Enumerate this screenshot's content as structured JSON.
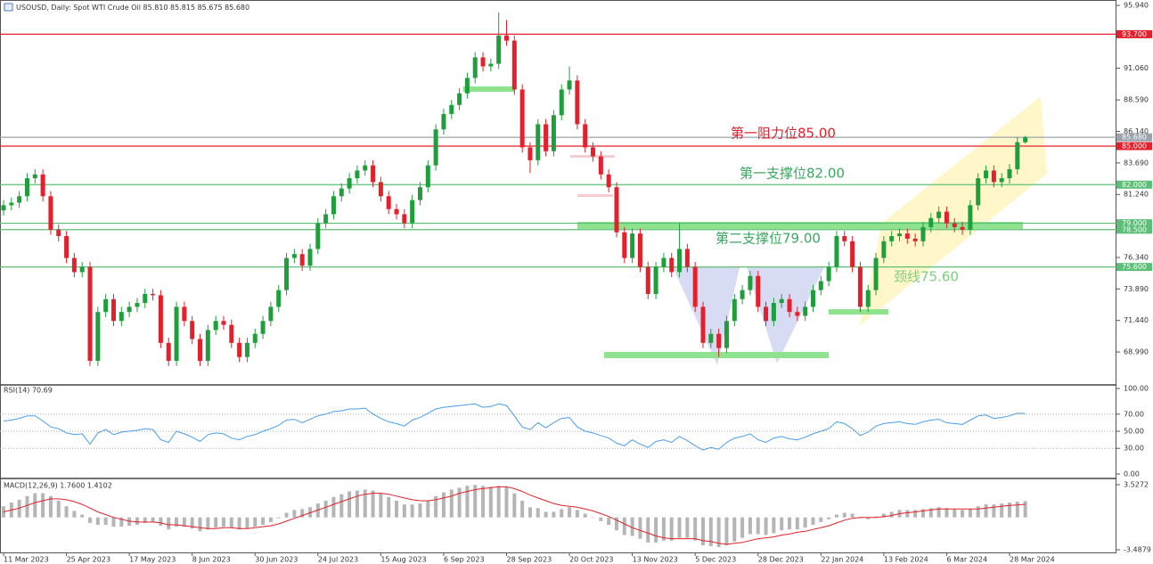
{
  "chart_data": [
    {
      "type": "candlestick",
      "title": "USOUSD, Daily:  Spot WTI Crude Oil  85.810 85.815 85.675 85.680",
      "categories": [
        "11 Mar 2023",
        null,
        null,
        null,
        null,
        null,
        null,
        null,
        "25 Apr 2023",
        null,
        null,
        null,
        null,
        null,
        null,
        null,
        "17 May 2023",
        null,
        null,
        null,
        null,
        null,
        null,
        null,
        "8 Jun 2023",
        null,
        null,
        null,
        null,
        null,
        null,
        null,
        "30 Jun 2023",
        null,
        null,
        null,
        null,
        null,
        null,
        null,
        "24 Jul 2023",
        null,
        null,
        null,
        null,
        null,
        null,
        null,
        "15 Aug 2023",
        null,
        null,
        null,
        null,
        null,
        null,
        null,
        "6 Sep 2023",
        null,
        null,
        null,
        null,
        null,
        null,
        null,
        "28 Sep 2023",
        null,
        null,
        null,
        null,
        null,
        null,
        null,
        "20 Oct 2023",
        null,
        null,
        null,
        null,
        null,
        null,
        null,
        "13 Nov 2023",
        null,
        null,
        null,
        null,
        null,
        null,
        null,
        "5 Dec 2023",
        null,
        null,
        null,
        null,
        null,
        null,
        null,
        "28 Dec 2023",
        null,
        null,
        null,
        null,
        null,
        null,
        null,
        "22 Jan 2024",
        null,
        null,
        null,
        null,
        null,
        null,
        null,
        "13 Feb 2024",
        null,
        null,
        null,
        null,
        null,
        null,
        null,
        "6 Mar 2024",
        null,
        null,
        null,
        null,
        null,
        null,
        null,
        "28 Mar 2024",
        null,
        null
      ],
      "open": [
        80.0,
        80.4,
        80.6,
        81.1,
        82.5,
        82.8,
        81.1,
        78.5,
        78.0,
        76.3,
        75.2,
        75.6,
        68.3,
        72.1,
        73.1,
        71.4,
        72.1,
        72.5,
        72.8,
        73.5,
        73.4,
        69.7,
        68.3,
        72.5,
        71.4,
        70.0,
        68.3,
        70.7,
        71.4,
        71.1,
        69.7,
        68.6,
        69.7,
        70.4,
        71.4,
        72.5,
        73.8,
        76.3,
        76.6,
        75.7,
        77.0,
        79.0,
        79.7,
        81.1,
        81.7,
        82.5,
        83.1,
        83.5,
        82.2,
        81.1,
        80.1,
        79.7,
        79.0,
        80.8,
        81.8,
        83.5,
        86.3,
        87.5,
        88.2,
        89.1,
        90.3,
        91.9,
        91.2,
        91.4,
        93.6,
        93.2,
        89.4,
        84.9,
        83.9,
        86.7,
        84.6,
        87.4,
        89.4,
        90.1,
        86.7,
        84.9,
        84.2,
        82.8,
        81.8,
        78.3,
        76.3,
        78.2,
        75.6,
        73.5,
        75.6,
        76.3,
        75.2,
        77.0,
        75.6,
        72.5,
        69.7,
        70.4,
        69.3,
        71.4,
        73.1,
        73.8,
        74.9,
        72.5,
        71.4,
        72.8,
        73.1,
        72.1,
        71.8,
        72.5,
        73.8,
        74.5,
        75.6,
        78.0,
        77.6,
        75.6,
        72.5,
        73.8,
        76.3,
        77.6,
        78.0,
        78.2,
        77.8,
        77.6,
        78.7,
        79.4,
        79.9,
        79.0,
        78.7,
        78.5,
        80.4,
        82.5,
        83.1,
        82.2,
        82.5,
        83.2,
        85.3
      ],
      "high": [
        80.8,
        81.0,
        81.5,
        82.9,
        83.2,
        83.2,
        81.5,
        78.9,
        78.4,
        76.7,
        76.0,
        76.0,
        72.5,
        73.5,
        73.5,
        72.5,
        72.9,
        73.2,
        73.9,
        73.9,
        73.8,
        70.1,
        72.9,
        72.9,
        71.8,
        70.4,
        71.1,
        71.8,
        71.8,
        71.5,
        70.1,
        70.1,
        70.8,
        71.8,
        72.9,
        74.2,
        76.7,
        77.0,
        77.0,
        77.4,
        79.4,
        80.1,
        81.5,
        82.1,
        82.9,
        83.5,
        83.9,
        83.9,
        82.6,
        81.5,
        80.5,
        80.1,
        81.2,
        82.2,
        83.9,
        86.7,
        87.9,
        88.6,
        89.5,
        90.7,
        92.3,
        92.3,
        91.8,
        95.4,
        94.8,
        93.6,
        89.8,
        85.3,
        87.1,
        87.1,
        87.8,
        89.8,
        91.2,
        90.5,
        87.1,
        85.3,
        84.6,
        83.2,
        82.2,
        78.7,
        78.6,
        78.6,
        76.0,
        76.0,
        76.7,
        76.7,
        79.0,
        77.4,
        76.0,
        72.9,
        70.8,
        70.8,
        71.8,
        73.5,
        74.2,
        75.3,
        75.3,
        72.9,
        73.2,
        73.5,
        73.5,
        72.5,
        72.9,
        74.2,
        74.9,
        76.0,
        78.4,
        78.4,
        78.0,
        76.0,
        74.2,
        76.7,
        78.0,
        78.4,
        78.6,
        78.6,
        78.2,
        79.1,
        79.8,
        80.3,
        80.3,
        79.4,
        79.1,
        80.8,
        82.9,
        83.5,
        83.5,
        82.9,
        83.6,
        85.7,
        85.8
      ],
      "low": [
        79.6,
        80.0,
        80.2,
        80.7,
        82.1,
        80.7,
        78.1,
        77.6,
        75.9,
        74.8,
        74.8,
        67.9,
        67.9,
        71.7,
        71.0,
        71.0,
        71.7,
        72.1,
        72.4,
        73.0,
        69.3,
        67.9,
        67.9,
        71.0,
        69.6,
        67.9,
        67.9,
        70.3,
        70.7,
        69.3,
        68.2,
        68.2,
        69.3,
        70.0,
        71.0,
        72.1,
        73.4,
        75.9,
        75.3,
        75.3,
        76.6,
        78.6,
        79.3,
        80.7,
        81.3,
        82.1,
        82.7,
        81.8,
        80.7,
        79.7,
        79.3,
        78.6,
        78.6,
        80.4,
        81.4,
        83.1,
        85.9,
        87.1,
        87.8,
        88.7,
        89.9,
        90.8,
        90.8,
        91.0,
        92.8,
        89.0,
        84.5,
        82.9,
        83.5,
        84.2,
        84.2,
        87.0,
        89.0,
        86.3,
        84.5,
        83.8,
        82.4,
        81.4,
        77.9,
        75.9,
        75.9,
        75.2,
        73.1,
        73.1,
        75.2,
        74.8,
        74.8,
        75.2,
        72.1,
        69.3,
        69.3,
        68.6,
        68.9,
        71.0,
        72.7,
        73.4,
        72.1,
        71.0,
        71.0,
        72.4,
        71.7,
        71.4,
        71.4,
        72.1,
        73.4,
        74.1,
        75.2,
        77.2,
        75.2,
        72.1,
        72.1,
        73.4,
        75.9,
        77.2,
        77.6,
        77.4,
        77.2,
        77.2,
        78.3,
        79.0,
        78.6,
        78.3,
        78.1,
        78.1,
        80.0,
        82.1,
        81.8,
        81.8,
        82.1,
        82.8,
        85.2
      ],
      "close": [
        80.4,
        80.6,
        81.1,
        82.5,
        82.8,
        81.1,
        78.5,
        78.0,
        76.3,
        75.2,
        75.6,
        68.3,
        72.1,
        73.1,
        71.4,
        72.1,
        72.5,
        72.8,
        73.5,
        73.4,
        69.7,
        68.3,
        72.5,
        71.4,
        70.0,
        68.3,
        70.7,
        71.4,
        71.1,
        69.7,
        68.6,
        69.7,
        70.4,
        71.4,
        72.5,
        73.8,
        76.3,
        76.6,
        75.7,
        77.0,
        79.0,
        79.7,
        81.1,
        81.7,
        82.5,
        83.1,
        83.5,
        82.2,
        81.1,
        80.1,
        79.7,
        79.0,
        80.8,
        81.8,
        83.5,
        86.3,
        87.5,
        88.2,
        89.1,
        90.3,
        91.9,
        91.2,
        91.4,
        93.6,
        93.2,
        89.4,
        84.9,
        83.9,
        86.7,
        84.6,
        87.4,
        89.4,
        90.1,
        86.7,
        84.9,
        84.2,
        82.8,
        81.8,
        78.3,
        76.3,
        78.2,
        75.6,
        73.5,
        75.6,
        76.3,
        75.2,
        77.0,
        75.6,
        72.5,
        69.7,
        70.4,
        69.3,
        71.4,
        73.1,
        73.8,
        74.9,
        72.5,
        71.4,
        72.8,
        73.1,
        72.1,
        71.8,
        72.5,
        73.8,
        74.5,
        75.6,
        78.0,
        77.6,
        75.6,
        72.5,
        73.8,
        76.3,
        77.6,
        78.0,
        78.2,
        77.8,
        77.6,
        78.7,
        79.4,
        79.9,
        79.0,
        78.7,
        78.5,
        80.4,
        82.5,
        83.1,
        82.2,
        82.5,
        83.2,
        85.3,
        85.68
      ],
      "up_color": "#1f9e3c",
      "down_color": "#e3202b",
      "ylim": [
        66.43,
        96.36
      ],
      "yticks": [
        {
          "value": 95.94,
          "label": "95.940"
        },
        {
          "value": 91.06,
          "label": "91.060"
        },
        {
          "value": 88.59,
          "label": "88.590"
        },
        {
          "value": 86.14,
          "label": "86.140"
        },
        {
          "value": 83.69,
          "label": "83.690"
        },
        {
          "value": 81.24,
          "label": "81.240"
        },
        {
          "value": 76.34,
          "label": "76.340"
        },
        {
          "value": 73.89,
          "label": "73.890"
        },
        {
          "value": 71.44,
          "label": "71.440"
        },
        {
          "value": 68.99,
          "label": "68.990"
        }
      ],
      "levels": [
        {
          "value": 93.7,
          "label": "93.700",
          "color": "#e3202b"
        },
        {
          "value": 85.68,
          "label": "85.680",
          "color": "#9aa3ad"
        },
        {
          "value": 85.0,
          "label": "85.000",
          "color": "#e3202b"
        },
        {
          "value": 82.0,
          "label": "82.000",
          "color": "#5cbf78"
        },
        {
          "value": 79.0,
          "label": "79.000",
          "color": "#5cbf78"
        },
        {
          "value": 78.5,
          "label": "78.500",
          "color": "#5cbf78"
        },
        {
          "value": 75.6,
          "label": "75.600",
          "color": "#5cbf78"
        }
      ],
      "annotations": [
        {
          "text": "第一阻力位85.00",
          "color": "#e3202b"
        },
        {
          "text": "第一支撑位82.00",
          "color": "#3aa860"
        },
        {
          "text": "第二支撑位79.00",
          "color": "#3aa860"
        },
        {
          "text": "颈线75.60",
          "color": "#7fcf7f"
        }
      ]
    },
    {
      "type": "line",
      "title": "RSI(14) 70.69",
      "color": "#4a9de8",
      "values": [
        62,
        63,
        65,
        68,
        68,
        62,
        55,
        53,
        48,
        46,
        47,
        35,
        48,
        52,
        46,
        49,
        50,
        51,
        53,
        52,
        40,
        37,
        50,
        47,
        43,
        38,
        46,
        48,
        47,
        42,
        40,
        44,
        46,
        50,
        53,
        57,
        63,
        64,
        60,
        64,
        68,
        70,
        73,
        74,
        76,
        76,
        77,
        70,
        65,
        61,
        59,
        56,
        63,
        66,
        71,
        76,
        78,
        79,
        80,
        81,
        82,
        78,
        79,
        82,
        80,
        68,
        55,
        52,
        60,
        54,
        60,
        65,
        66,
        55,
        50,
        48,
        45,
        42,
        36,
        33,
        40,
        35,
        31,
        38,
        40,
        37,
        44,
        39,
        33,
        28,
        31,
        29,
        37,
        42,
        44,
        47,
        40,
        37,
        42,
        44,
        41,
        40,
        43,
        47,
        50,
        53,
        61,
        59,
        53,
        45,
        49,
        56,
        59,
        60,
        61,
        59,
        58,
        61,
        63,
        64,
        60,
        59,
        58,
        63,
        68,
        69,
        65,
        66,
        68,
        71,
        70.69
      ],
      "ylim": [
        0,
        100
      ],
      "yticks": [
        {
          "value": 100,
          "label": "100.00"
        },
        {
          "value": 70,
          "label": "70.00"
        },
        {
          "value": 50,
          "label": "50.00"
        },
        {
          "value": 30,
          "label": "30.00"
        },
        {
          "value": 0,
          "label": "0.00"
        }
      ]
    },
    {
      "type": "macd",
      "title": "MACD(12,26,9) 1.7600 1.4102",
      "histogram_color": "#b5b5b5",
      "signal_color": "#e3202b",
      "histogram": [
        1.2,
        1.6,
        1.9,
        2.3,
        2.6,
        2.6,
        2.3,
        1.8,
        1.2,
        0.7,
        0.3,
        -0.6,
        -0.8,
        -0.8,
        -1.0,
        -1.0,
        -0.9,
        -0.8,
        -0.6,
        -0.5,
        -0.9,
        -1.3,
        -1.0,
        -1.0,
        -1.2,
        -1.5,
        -1.3,
        -1.1,
        -1.0,
        -1.1,
        -1.3,
        -1.2,
        -1.0,
        -0.8,
        -0.5,
        -0.1,
        0.5,
        0.8,
        0.9,
        1.1,
        1.5,
        1.8,
        2.2,
        2.5,
        2.8,
        2.9,
        3.0,
        2.9,
        2.6,
        2.2,
        1.8,
        1.4,
        1.4,
        1.5,
        1.8,
        2.3,
        2.7,
        3.0,
        3.2,
        3.4,
        3.5,
        3.4,
        3.3,
        3.4,
        3.3,
        2.6,
        1.8,
        1.1,
        1.0,
        0.6,
        0.6,
        0.9,
        1.1,
        0.8,
        0.4,
        0.0,
        -0.4,
        -0.8,
        -1.4,
        -1.9,
        -2.0,
        -2.3,
        -2.7,
        -2.7,
        -2.5,
        -2.5,
        -2.2,
        -2.2,
        -2.5,
        -3.0,
        -3.1,
        -3.2,
        -3.0,
        -2.6,
        -2.2,
        -1.8,
        -1.8,
        -1.9,
        -1.7,
        -1.4,
        -1.3,
        -1.3,
        -1.1,
        -0.8,
        -0.5,
        -0.2,
        0.3,
        0.5,
        0.4,
        -0.1,
        -0.2,
        0.1,
        0.4,
        0.6,
        0.8,
        0.8,
        0.8,
        0.9,
        1.0,
        1.1,
        1.0,
        0.9,
        0.8,
        0.9,
        1.2,
        1.4,
        1.4,
        1.5,
        1.6,
        1.7,
        1.76
      ],
      "signal": [
        0.6,
        0.8,
        1.0,
        1.3,
        1.6,
        1.8,
        2.0,
        2.0,
        1.9,
        1.7,
        1.4,
        1.0,
        0.6,
        0.3,
        0.0,
        -0.2,
        -0.4,
        -0.5,
        -0.5,
        -0.5,
        -0.6,
        -0.8,
        -0.8,
        -0.9,
        -1.0,
        -1.1,
        -1.2,
        -1.2,
        -1.1,
        -1.1,
        -1.2,
        -1.2,
        -1.1,
        -1.0,
        -0.9,
        -0.7,
        -0.4,
        -0.1,
        0.2,
        0.5,
        0.8,
        1.1,
        1.4,
        1.7,
        2.0,
        2.3,
        2.5,
        2.6,
        2.6,
        2.5,
        2.3,
        2.1,
        1.9,
        1.8,
        1.8,
        1.9,
        2.1,
        2.3,
        2.6,
        2.8,
        3.0,
        3.1,
        3.2,
        3.3,
        3.3,
        3.1,
        2.8,
        2.4,
        2.1,
        1.8,
        1.5,
        1.3,
        1.2,
        1.1,
        0.9,
        0.7,
        0.4,
        0.1,
        -0.3,
        -0.7,
        -1.1,
        -1.4,
        -1.7,
        -2.0,
        -2.2,
        -2.3,
        -2.3,
        -2.3,
        -2.3,
        -2.5,
        -2.6,
        -2.8,
        -2.9,
        -2.8,
        -2.7,
        -2.5,
        -2.3,
        -2.2,
        -2.1,
        -1.9,
        -1.8,
        -1.6,
        -1.5,
        -1.3,
        -1.1,
        -0.9,
        -0.6,
        -0.3,
        -0.1,
        0.0,
        0.0,
        0.0,
        0.1,
        0.2,
        0.4,
        0.5,
        0.6,
        0.7,
        0.8,
        0.9,
        0.9,
        0.9,
        0.9,
        0.9,
        0.9,
        1.0,
        1.1,
        1.2,
        1.3,
        1.35,
        1.41
      ],
      "ylim": [
        -3.4879,
        3.5272
      ],
      "yticks": [
        3.5272,
        -3.4879
      ]
    }
  ]
}
